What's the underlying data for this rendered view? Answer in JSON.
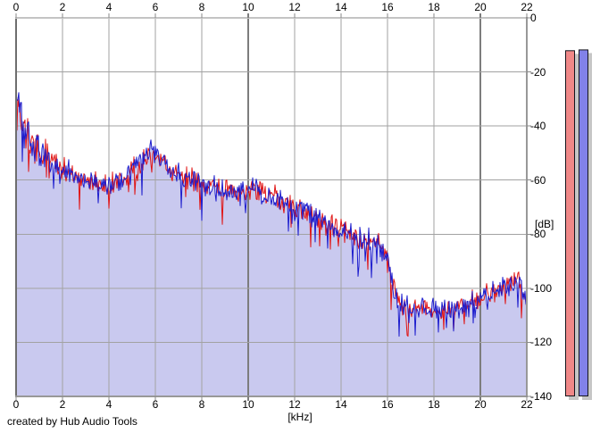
{
  "app": {
    "credit": "created by Hub Audio Tools"
  },
  "chart_data": {
    "type": "line",
    "title": "",
    "subtitle": "",
    "xlabel": "[kHz]",
    "ylabel": "[dB]",
    "xlim": [
      0,
      22
    ],
    "ylim": [
      -140,
      0
    ],
    "xticks": [
      0,
      2,
      4,
      6,
      8,
      10,
      12,
      14,
      16,
      18,
      20,
      22
    ],
    "yticks": [
      0,
      -20,
      -40,
      -60,
      -80,
      -100,
      -120,
      -140
    ],
    "major_xticks": [
      10,
      20
    ],
    "grid": true,
    "legend": "none",
    "axis_colors": {
      "minor_grid": "#a2a2a2",
      "major_grid": "#7d7d7d",
      "frame_left": "#6e6e6e",
      "frame_top": "#c4c4c4",
      "frame_right": "#989898",
      "frame_bottom": "#989898",
      "tick": "#888888"
    },
    "series": [
      {
        "name": "spectrum-red-channel",
        "color": "#e01414",
        "fill": null,
        "seed": 1069,
        "noise_db": 5,
        "dip_chance": 0.07,
        "dip_depth_db": 13
      },
      {
        "name": "spectrum-blue-channel",
        "color": "#1c1ccd",
        "fill": "#c9c9ef",
        "seed": 777,
        "noise_db": 5,
        "dip_chance": 0.07,
        "dip_depth_db": 13
      }
    ],
    "envelope_points": [
      [
        0,
        -27
      ],
      [
        0.1,
        -31
      ],
      [
        0.3,
        -40
      ],
      [
        0.6,
        -46
      ],
      [
        1,
        -49
      ],
      [
        1.5,
        -53
      ],
      [
        2,
        -56
      ],
      [
        2.5,
        -58
      ],
      [
        3,
        -60
      ],
      [
        4,
        -62
      ],
      [
        4.6,
        -60
      ],
      [
        5,
        -57
      ],
      [
        5.5,
        -52
      ],
      [
        5.9,
        -49
      ],
      [
        6.2,
        -53
      ],
      [
        6.6,
        -56
      ],
      [
        7,
        -58
      ],
      [
        8,
        -61
      ],
      [
        9,
        -64
      ],
      [
        9.6,
        -65
      ],
      [
        10.3,
        -62
      ],
      [
        11,
        -66
      ],
      [
        12,
        -70
      ],
      [
        13,
        -74
      ],
      [
        14,
        -78
      ],
      [
        15,
        -82
      ],
      [
        15.6,
        -84
      ],
      [
        16,
        -89
      ],
      [
        16.2,
        -98
      ],
      [
        16.45,
        -106
      ],
      [
        17,
        -108
      ],
      [
        18.5,
        -108
      ],
      [
        19.5,
        -106
      ],
      [
        20.2,
        -102
      ],
      [
        21,
        -99
      ],
      [
        21.7,
        -98
      ],
      [
        22,
        -107
      ]
    ],
    "points_per_khz": 26
  },
  "meters": {
    "bars": [
      {
        "name": "level-meter-red",
        "color": "#f08888",
        "level_db": -12.0
      },
      {
        "name": "level-meter-blue",
        "color": "#8282e9",
        "level_db": -11.7
      }
    ],
    "shadow_color": "#c6c6c6",
    "border_color": "#15151c"
  }
}
